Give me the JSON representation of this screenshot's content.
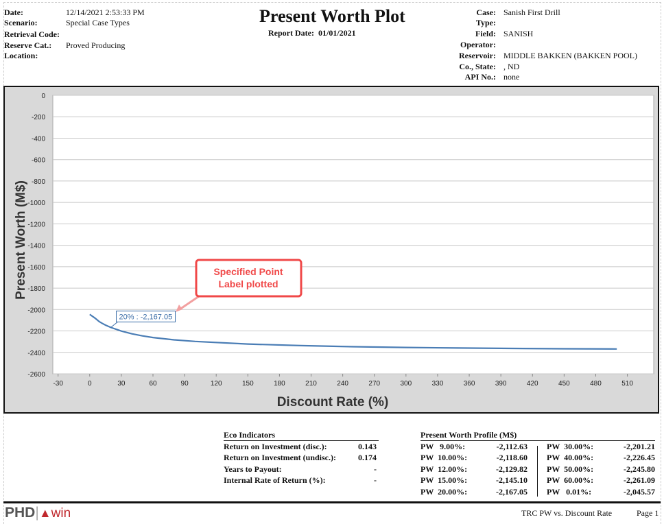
{
  "header": {
    "title": "Present Worth Plot",
    "report_date_label": "Report Date:",
    "report_date": "01/01/2021",
    "left": [
      {
        "label": "Date:",
        "value": "12/14/2021 2:53:33 PM"
      },
      {
        "label": "Scenario:",
        "value": "Special Case Types"
      },
      {
        "label": "Retrieval Code:",
        "value": ""
      },
      {
        "label": "Reserve Cat.:",
        "value": "Proved Producing"
      },
      {
        "label": "Location:",
        "value": ""
      }
    ],
    "right": [
      {
        "label": "Case:",
        "value": "Sanish First Drill"
      },
      {
        "label": "Type:",
        "value": ""
      },
      {
        "label": "Field:",
        "value": "SANISH"
      },
      {
        "label": "Operator:",
        "value": ""
      },
      {
        "label": "Reservoir:",
        "value": "MIDDLE BAKKEN (BAKKEN POOL)"
      },
      {
        "label": "Co., State:",
        "value": ", ND"
      },
      {
        "label": "API No.:",
        "value": "none"
      }
    ]
  },
  "chart_data": {
    "type": "line",
    "xlabel": "Discount Rate (%)",
    "ylabel": "Present Worth (M$)",
    "xlim": [
      -35,
      535
    ],
    "ylim": [
      -2600,
      0
    ],
    "xticks": [
      -30,
      0,
      30,
      60,
      90,
      120,
      150,
      180,
      210,
      240,
      270,
      300,
      330,
      360,
      390,
      420,
      450,
      480,
      510
    ],
    "yticks": [
      0,
      -200,
      -400,
      -600,
      -800,
      -1000,
      -1200,
      -1400,
      -1600,
      -1800,
      -2000,
      -2200,
      -2400,
      -2600
    ],
    "grid": true,
    "series": [
      {
        "name": "PW",
        "color": "#4a7db5",
        "x": [
          0.01,
          5,
          9,
          10,
          12,
          15,
          20,
          30,
          40,
          50,
          60,
          80,
          100,
          150,
          200,
          250,
          300,
          350,
          400,
          450,
          500
        ],
        "y": [
          -2045.57,
          -2080,
          -2112.63,
          -2118.6,
          -2129.82,
          -2145.1,
          -2167.05,
          -2201.21,
          -2226.45,
          -2245.8,
          -2261.09,
          -2283,
          -2298,
          -2322,
          -2337,
          -2347,
          -2354,
          -2359,
          -2363,
          -2366,
          -2368
        ]
      }
    ],
    "point_label": {
      "x": 20,
      "y": -2167.05,
      "text": "20% : -2,167.05"
    },
    "annotation": {
      "text_line1": "Specified Point",
      "text_line2": "Label plotted",
      "color": "#f04848"
    }
  },
  "eco": {
    "title": "Eco Indicators",
    "rows": [
      {
        "label": "Return on Investment (disc.):",
        "value": "0.143"
      },
      {
        "label": "Return on Investment (undisc.):",
        "value": "0.174"
      },
      {
        "label": "Years to Payout:",
        "value": "-"
      },
      {
        "label": "Internal Rate of Return (%):",
        "value": "-"
      }
    ]
  },
  "pw_profile": {
    "title": "Present Worth Profile (M$)",
    "left": [
      {
        "label": "PW   9.00%:",
        "value": "-2,112.63"
      },
      {
        "label": "PW  10.00%:",
        "value": "-2,118.60"
      },
      {
        "label": "PW  12.00%:",
        "value": "-2,129.82"
      },
      {
        "label": "PW  15.00%:",
        "value": "-2,145.10"
      },
      {
        "label": "PW  20.00%:",
        "value": "-2,167.05"
      }
    ],
    "right": [
      {
        "label": "PW  30.00%:",
        "value": "-2,201.21"
      },
      {
        "label": "PW  40.00%:",
        "value": "-2,226.45"
      },
      {
        "label": "PW  50.00%:",
        "value": "-2,245.80"
      },
      {
        "label": "PW  60.00%:",
        "value": "-2,261.09"
      },
      {
        "label": "PW   0.01%:",
        "value": "-2,045.57"
      }
    ]
  },
  "footer": {
    "logo": "PHDwin",
    "report_name": "TRC PW vs. Discount Rate",
    "page": "Page 1"
  }
}
